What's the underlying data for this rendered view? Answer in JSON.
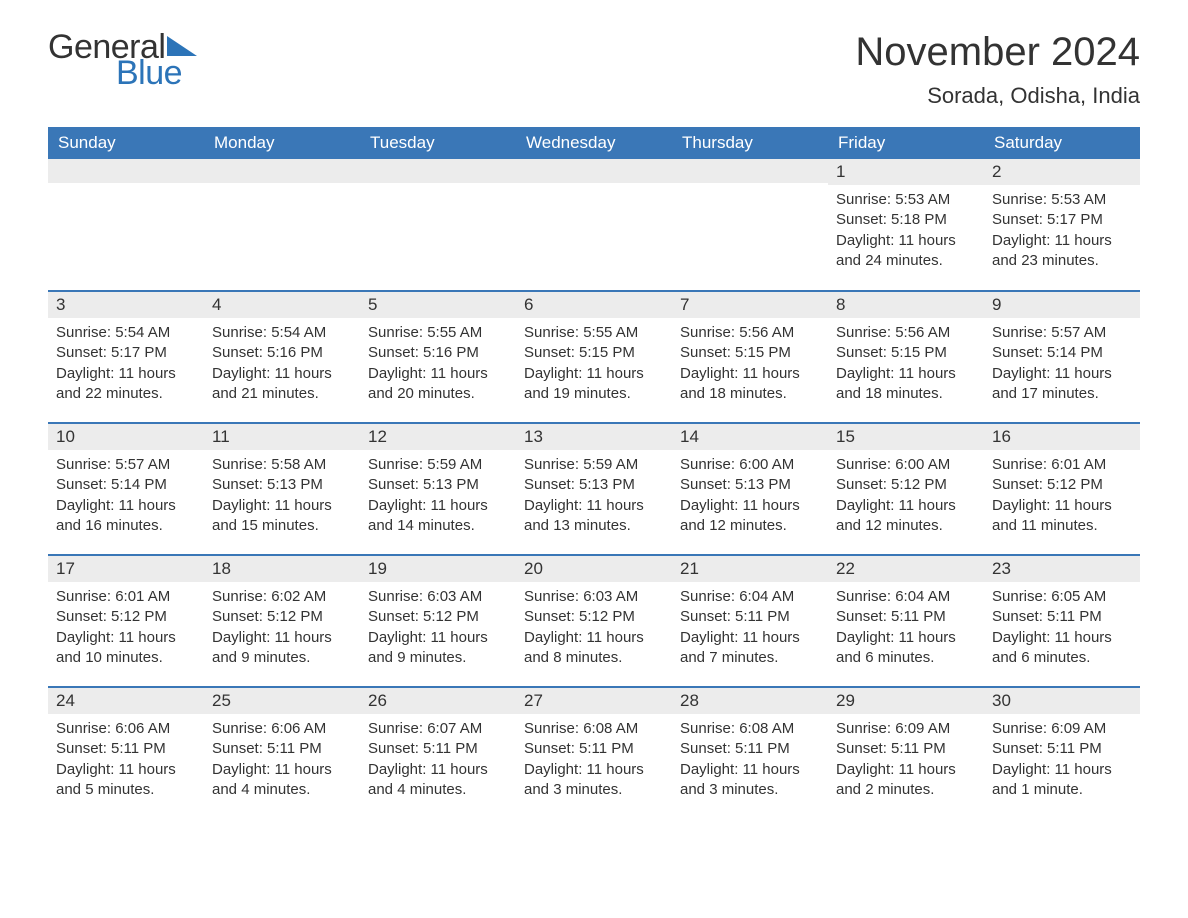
{
  "logo": {
    "text_general": "General",
    "text_blue": "Blue"
  },
  "title": "November 2024",
  "location": "Sorada, Odisha, India",
  "colors": {
    "header_bg": "#3a77b7",
    "header_text": "#ffffff",
    "daynum_bg": "#ececec",
    "row_border": "#3a77b7",
    "body_text": "#333333",
    "logo_blue": "#2c74b8",
    "page_bg": "#ffffff"
  },
  "typography": {
    "title_fontsize": 40,
    "location_fontsize": 22,
    "weekday_fontsize": 17,
    "daynum_fontsize": 17,
    "body_fontsize": 15,
    "logo_fontsize": 34
  },
  "weekdays": [
    "Sunday",
    "Monday",
    "Tuesday",
    "Wednesday",
    "Thursday",
    "Friday",
    "Saturday"
  ],
  "labels": {
    "sunrise": "Sunrise:",
    "sunset": "Sunset:",
    "daylight": "Daylight:"
  },
  "weeks": [
    [
      null,
      null,
      null,
      null,
      null,
      {
        "day": "1",
        "sunrise": "5:53 AM",
        "sunset": "5:18 PM",
        "daylight": "11 hours and 24 minutes."
      },
      {
        "day": "2",
        "sunrise": "5:53 AM",
        "sunset": "5:17 PM",
        "daylight": "11 hours and 23 minutes."
      }
    ],
    [
      {
        "day": "3",
        "sunrise": "5:54 AM",
        "sunset": "5:17 PM",
        "daylight": "11 hours and 22 minutes."
      },
      {
        "day": "4",
        "sunrise": "5:54 AM",
        "sunset": "5:16 PM",
        "daylight": "11 hours and 21 minutes."
      },
      {
        "day": "5",
        "sunrise": "5:55 AM",
        "sunset": "5:16 PM",
        "daylight": "11 hours and 20 minutes."
      },
      {
        "day": "6",
        "sunrise": "5:55 AM",
        "sunset": "5:15 PM",
        "daylight": "11 hours and 19 minutes."
      },
      {
        "day": "7",
        "sunrise": "5:56 AM",
        "sunset": "5:15 PM",
        "daylight": "11 hours and 18 minutes."
      },
      {
        "day": "8",
        "sunrise": "5:56 AM",
        "sunset": "5:15 PM",
        "daylight": "11 hours and 18 minutes."
      },
      {
        "day": "9",
        "sunrise": "5:57 AM",
        "sunset": "5:14 PM",
        "daylight": "11 hours and 17 minutes."
      }
    ],
    [
      {
        "day": "10",
        "sunrise": "5:57 AM",
        "sunset": "5:14 PM",
        "daylight": "11 hours and 16 minutes."
      },
      {
        "day": "11",
        "sunrise": "5:58 AM",
        "sunset": "5:13 PM",
        "daylight": "11 hours and 15 minutes."
      },
      {
        "day": "12",
        "sunrise": "5:59 AM",
        "sunset": "5:13 PM",
        "daylight": "11 hours and 14 minutes."
      },
      {
        "day": "13",
        "sunrise": "5:59 AM",
        "sunset": "5:13 PM",
        "daylight": "11 hours and 13 minutes."
      },
      {
        "day": "14",
        "sunrise": "6:00 AM",
        "sunset": "5:13 PM",
        "daylight": "11 hours and 12 minutes."
      },
      {
        "day": "15",
        "sunrise": "6:00 AM",
        "sunset": "5:12 PM",
        "daylight": "11 hours and 12 minutes."
      },
      {
        "day": "16",
        "sunrise": "6:01 AM",
        "sunset": "5:12 PM",
        "daylight": "11 hours and 11 minutes."
      }
    ],
    [
      {
        "day": "17",
        "sunrise": "6:01 AM",
        "sunset": "5:12 PM",
        "daylight": "11 hours and 10 minutes."
      },
      {
        "day": "18",
        "sunrise": "6:02 AM",
        "sunset": "5:12 PM",
        "daylight": "11 hours and 9 minutes."
      },
      {
        "day": "19",
        "sunrise": "6:03 AM",
        "sunset": "5:12 PM",
        "daylight": "11 hours and 9 minutes."
      },
      {
        "day": "20",
        "sunrise": "6:03 AM",
        "sunset": "5:12 PM",
        "daylight": "11 hours and 8 minutes."
      },
      {
        "day": "21",
        "sunrise": "6:04 AM",
        "sunset": "5:11 PM",
        "daylight": "11 hours and 7 minutes."
      },
      {
        "day": "22",
        "sunrise": "6:04 AM",
        "sunset": "5:11 PM",
        "daylight": "11 hours and 6 minutes."
      },
      {
        "day": "23",
        "sunrise": "6:05 AM",
        "sunset": "5:11 PM",
        "daylight": "11 hours and 6 minutes."
      }
    ],
    [
      {
        "day": "24",
        "sunrise": "6:06 AM",
        "sunset": "5:11 PM",
        "daylight": "11 hours and 5 minutes."
      },
      {
        "day": "25",
        "sunrise": "6:06 AM",
        "sunset": "5:11 PM",
        "daylight": "11 hours and 4 minutes."
      },
      {
        "day": "26",
        "sunrise": "6:07 AM",
        "sunset": "5:11 PM",
        "daylight": "11 hours and 4 minutes."
      },
      {
        "day": "27",
        "sunrise": "6:08 AM",
        "sunset": "5:11 PM",
        "daylight": "11 hours and 3 minutes."
      },
      {
        "day": "28",
        "sunrise": "6:08 AM",
        "sunset": "5:11 PM",
        "daylight": "11 hours and 3 minutes."
      },
      {
        "day": "29",
        "sunrise": "6:09 AM",
        "sunset": "5:11 PM",
        "daylight": "11 hours and 2 minutes."
      },
      {
        "day": "30",
        "sunrise": "6:09 AM",
        "sunset": "5:11 PM",
        "daylight": "11 hours and 1 minute."
      }
    ]
  ]
}
